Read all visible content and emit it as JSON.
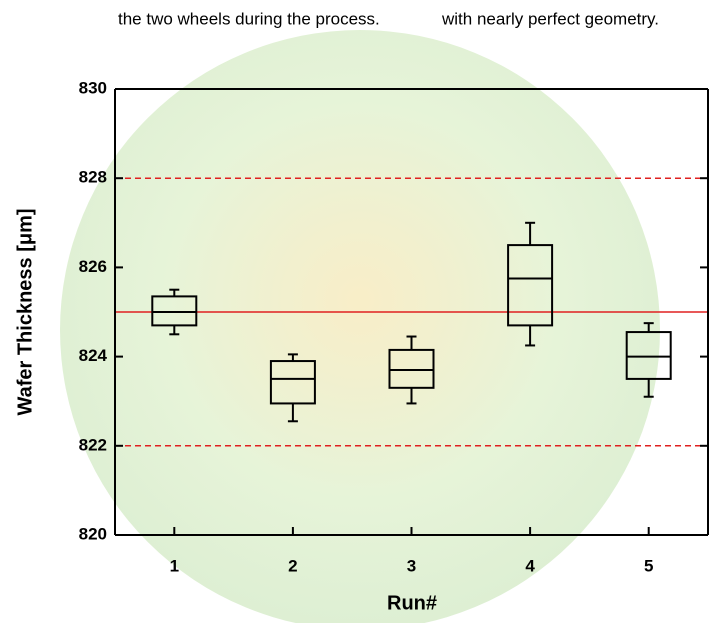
{
  "header_text": [
    "the two wheels during the process.",
    "with nearly perfect geometry."
  ],
  "chart_data": {
    "type": "box",
    "x_label": "Run#",
    "y_label": "Wafer Thickness [μm]",
    "categories": [
      "1",
      "2",
      "3",
      "4",
      "5"
    ],
    "boxes": [
      {
        "min": 824.5,
        "q1": 824.7,
        "median": 825.0,
        "q3": 825.35,
        "max": 825.5
      },
      {
        "min": 822.55,
        "q1": 822.95,
        "median": 823.5,
        "q3": 823.9,
        "max": 824.05
      },
      {
        "min": 822.95,
        "q1": 823.3,
        "median": 823.7,
        "q3": 824.15,
        "max": 824.45
      },
      {
        "min": 824.25,
        "q1": 824.7,
        "median": 825.75,
        "q3": 826.5,
        "max": 827.0
      },
      {
        "min": 823.1,
        "q1": 823.5,
        "median": 824.0,
        "q3": 824.55,
        "max": 824.75
      }
    ],
    "box_color": "#000000",
    "ylim": [
      820,
      830
    ],
    "yticks": [
      820,
      822,
      824,
      826,
      828,
      830
    ],
    "reference_lines": [
      {
        "value": 828,
        "style": "dashed"
      },
      {
        "value": 825,
        "style": "solid"
      },
      {
        "value": 822,
        "style": "dashed"
      }
    ],
    "reference_color": "#e02020"
  }
}
